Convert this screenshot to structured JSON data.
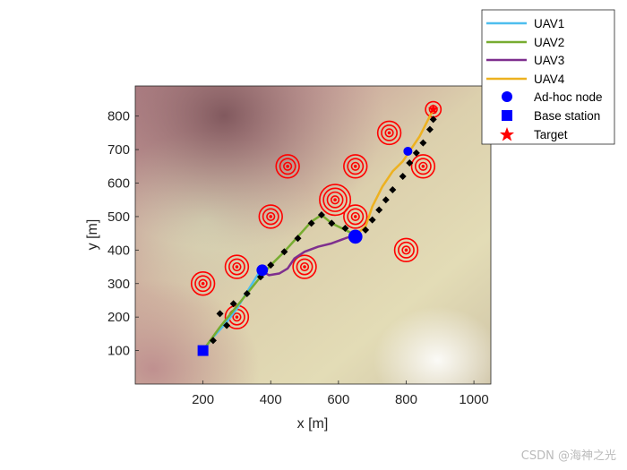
{
  "chart_data": {
    "type": "line",
    "xlabel": "x [m]",
    "ylabel": "y [m]",
    "xlim": [
      0,
      1050
    ],
    "ylim": [
      0,
      890
    ],
    "xticks": [
      200,
      400,
      600,
      800,
      1000
    ],
    "yticks": [
      100,
      200,
      300,
      400,
      500,
      600,
      700,
      800
    ],
    "background": "terrain map",
    "legend_position": "top-right",
    "series": [
      {
        "name": "UAV1",
        "color": "#4DBEEE",
        "style": "solid",
        "width": 2.5,
        "x": [
          200,
          230,
          270,
          300,
          330,
          370
        ],
        "y": [
          100,
          140,
          185,
          225,
          275,
          340
        ]
      },
      {
        "name": "UAV2",
        "color": "#77AC30",
        "style": "solid",
        "width": 2.5,
        "x": [
          200,
          250,
          290,
          330,
          370,
          400,
          440,
          480,
          520,
          550,
          580,
          620,
          650
        ],
        "y": [
          100,
          170,
          220,
          270,
          320,
          355,
          395,
          440,
          485,
          505,
          480,
          460,
          445
        ]
      },
      {
        "name": "UAV3",
        "color": "#7E2F8E",
        "style": "solid",
        "width": 2.5,
        "x": [
          370,
          395,
          425,
          450,
          470,
          500,
          540,
          580,
          620,
          650
        ],
        "y": [
          340,
          325,
          330,
          345,
          375,
          395,
          410,
          420,
          435,
          445
        ]
      },
      {
        "name": "UAV4",
        "color": "#EDB120",
        "style": "solid",
        "width": 2.5,
        "x": [
          650,
          680,
          700,
          730,
          760,
          790,
          810,
          840,
          865,
          880
        ],
        "y": [
          445,
          470,
          530,
          590,
          635,
          665,
          695,
          740,
          790,
          820
        ]
      }
    ],
    "waypoints_black": {
      "color": "#000000",
      "x": [
        230,
        250,
        270,
        290,
        330,
        370,
        400,
        440,
        480,
        520,
        550,
        580,
        620,
        680,
        700,
        720,
        740,
        760,
        790,
        810,
        830,
        850,
        870,
        880
      ],
      "y": [
        130,
        210,
        175,
        240,
        270,
        320,
        355,
        395,
        435,
        480,
        505,
        480,
        465,
        460,
        490,
        520,
        550,
        580,
        620,
        660,
        690,
        720,
        760,
        790
      ]
    },
    "adhoc_nodes": {
      "name": "Ad-hoc node",
      "color": "#0000FF",
      "x": [
        375,
        650,
        805
      ],
      "y": [
        340,
        440,
        695
      ],
      "size": [
        9,
        11,
        7
      ]
    },
    "base_station": {
      "name": "Base station",
      "color": "#0000FF",
      "x": [
        200
      ],
      "y": [
        100
      ]
    },
    "targets": {
      "name": "Target",
      "color": "#FF0000",
      "x": [
        200,
        300,
        300,
        400,
        450,
        500,
        590,
        650,
        650,
        750,
        800,
        850,
        880
      ],
      "y": [
        300,
        200,
        350,
        500,
        650,
        350,
        550,
        650,
        500,
        750,
        400,
        650,
        820
      ],
      "rings": [
        3,
        3,
        3,
        3,
        3,
        3,
        4,
        3,
        3,
        3,
        3,
        3,
        2
      ]
    }
  }
}
